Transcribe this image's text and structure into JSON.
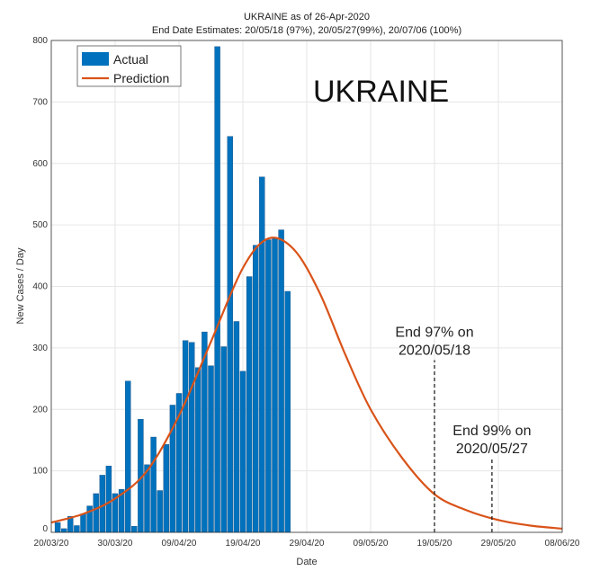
{
  "chart_data": {
    "type": "bar",
    "title": "UKRAINE as of 26-Apr-2020",
    "subtitle": "End Date Estimates: 20/05/18 (97%), 20/05/27(99%), 20/07/06 (100%)",
    "overlay_text": "UKRAINE",
    "xlabel": "Date",
    "ylabel": "New Cases / Day",
    "ylim": [
      0,
      800
    ],
    "yticks": [
      0,
      100,
      200,
      300,
      400,
      500,
      600,
      700,
      800
    ],
    "xlim": [
      "2020-03-20",
      "2020-06-08"
    ],
    "xticks": [
      "20/03/20",
      "30/03/20",
      "09/04/20",
      "19/04/20",
      "29/04/20",
      "09/05/20",
      "19/05/20",
      "29/05/20",
      "08/06/20"
    ],
    "grid": true,
    "legend_placement": "top-left",
    "colors": {
      "actual": "#0072BD",
      "prediction": "#D95319"
    },
    "series": [
      {
        "name": "Actual",
        "type": "bar",
        "start_date": "2020-03-21",
        "values": [
          16,
          6,
          26,
          11,
          30,
          43,
          63,
          93,
          108,
          63,
          70,
          246,
          10,
          184,
          110,
          155,
          68,
          143,
          207,
          226,
          312,
          309,
          268,
          326,
          271,
          790,
          302,
          644,
          343,
          262,
          416,
          467,
          578,
          476,
          478,
          492,
          392
        ]
      },
      {
        "name": "Prediction",
        "type": "line",
        "points": [
          [
            "2020-03-20",
            16
          ],
          [
            "2020-03-25",
            30
          ],
          [
            "2020-03-30",
            55
          ],
          [
            "2020-04-04",
            100
          ],
          [
            "2020-04-09",
            190
          ],
          [
            "2020-04-14",
            310
          ],
          [
            "2020-04-19",
            430
          ],
          [
            "2020-04-23",
            478
          ],
          [
            "2020-04-27",
            460
          ],
          [
            "2020-05-01",
            390
          ],
          [
            "2020-05-05",
            290
          ],
          [
            "2020-05-09",
            200
          ],
          [
            "2020-05-14",
            120
          ],
          [
            "2020-05-19",
            62
          ],
          [
            "2020-05-24",
            36
          ],
          [
            "2020-05-29",
            20
          ],
          [
            "2020-06-03",
            11
          ],
          [
            "2020-06-08",
            6
          ]
        ]
      }
    ],
    "annotations": [
      {
        "text_line1": "End 97% on",
        "text_line2": "2020/05/18",
        "date": "2020-05-19",
        "line_top": 280
      },
      {
        "text_line1": "End 99% on",
        "text_line2": "2020/05/27",
        "date": "2020-05-28",
        "line_top": 120
      }
    ]
  }
}
